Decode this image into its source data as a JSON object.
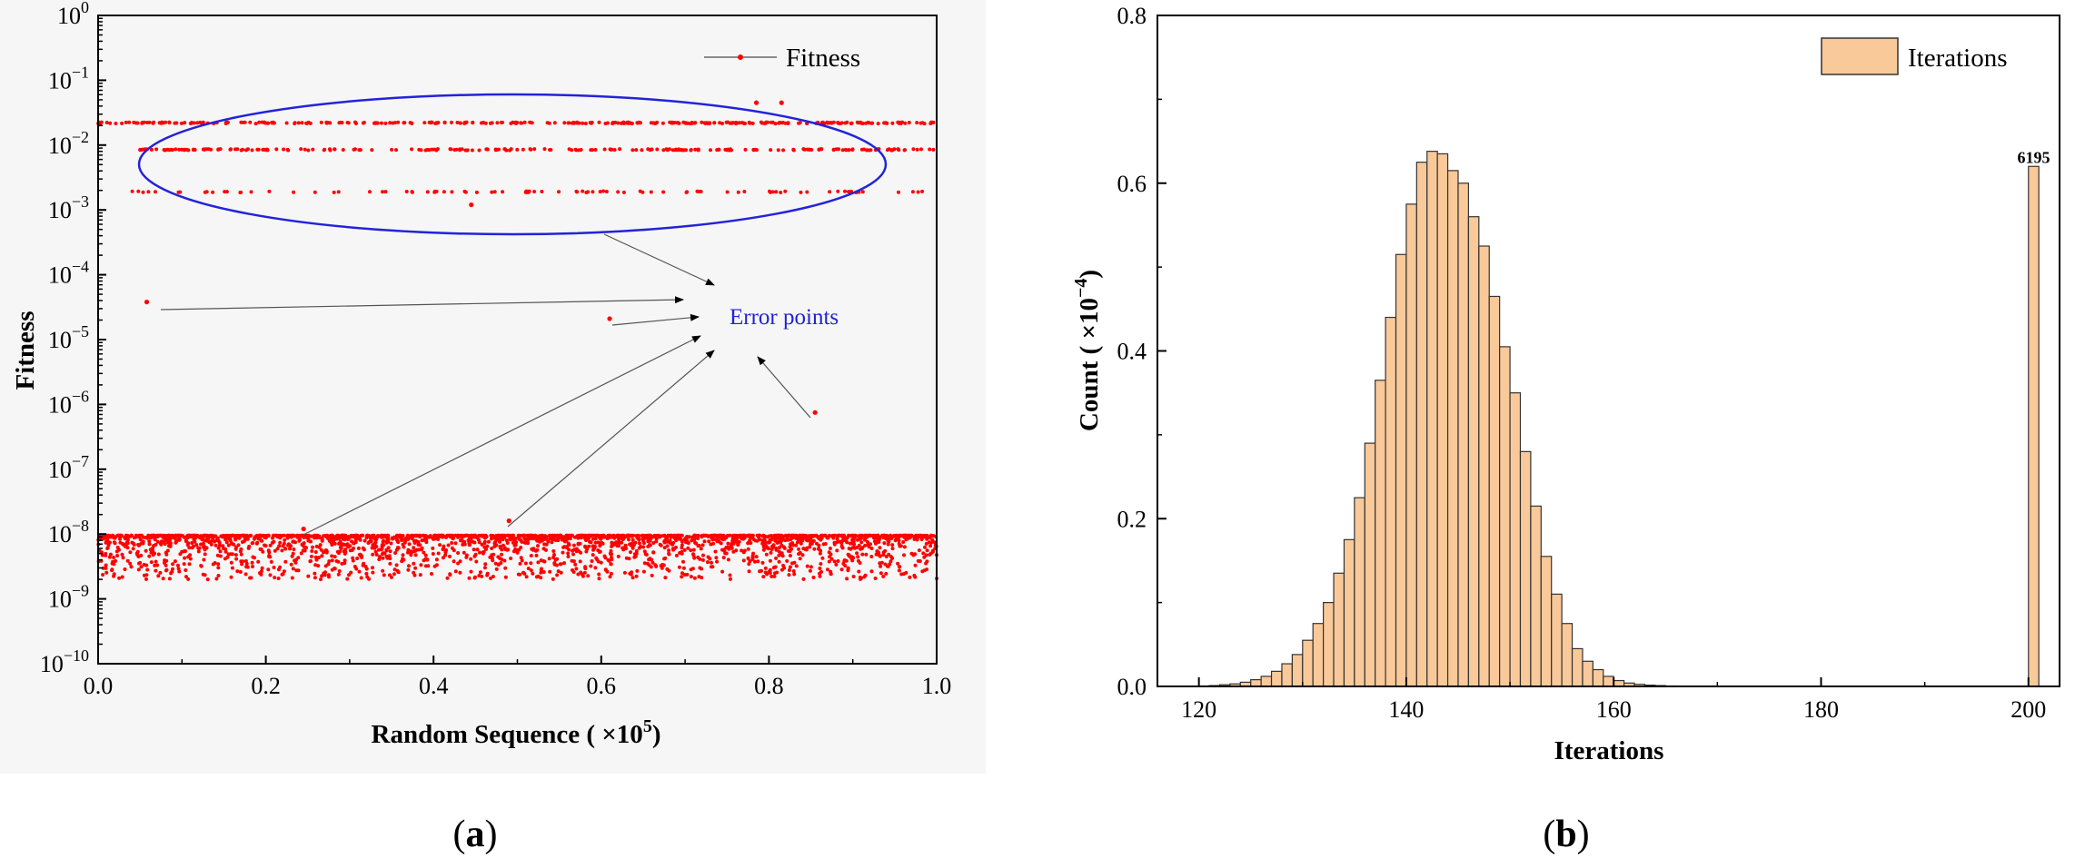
{
  "panel_a": {
    "caption_letter": "a",
    "annotation": "Error points",
    "chart_data": {
      "type": "scatter",
      "xlabel_prefix": "Random Sequence ( ×10",
      "xlabel_exp": "5",
      "xlabel_suffix": ")",
      "ylabel": "Fitness",
      "xlim": [
        0.0,
        1.0
      ],
      "ylim": [
        1e-10,
        1
      ],
      "yscale": "log",
      "xticks": [
        "0.0",
        "0.2",
        "0.4",
        "0.6",
        "0.8",
        "1.0"
      ],
      "ytick_exponents": [
        "0",
        "-1",
        "-2",
        "-3",
        "-4",
        "-5",
        "-6",
        "-7",
        "-8",
        "-9",
        "-10"
      ],
      "grid": false,
      "legend_position": "top-right",
      "series": [
        {
          "name": "Fitness",
          "color": "#ff0000",
          "bands": [
            {
              "y": 0.022,
              "x_range": [
                0.0,
                1.0
              ]
            },
            {
              "y": 0.0085,
              "x_range": [
                0.05,
                1.0
              ]
            },
            {
              "y": 0.0019,
              "x_range": [
                0.03,
                1.0
              ]
            },
            {
              "y_range": [
                2e-09,
                9.5e-09
              ],
              "x_range": [
                0.0,
                1.0
              ]
            }
          ],
          "error_points": [
            {
              "x": 0.058,
              "y": 3.8e-05
            },
            {
              "x": 0.61,
              "y": 2.1e-05
            },
            {
              "x": 0.855,
              "y": 7.5e-07
            },
            {
              "x": 0.245,
              "y": 1.2e-08
            },
            {
              "x": 0.49,
              "y": 1.6e-08
            },
            {
              "x": 0.445,
              "y": 0.0012
            },
            {
              "x": 0.785,
              "y": 0.045
            },
            {
              "x": 0.815,
              "y": 0.045
            }
          ]
        }
      ]
    }
  },
  "panel_b": {
    "caption_letter": "b",
    "chart_data": {
      "type": "bar",
      "xlabel": "Iterations",
      "ylabel_prefix": "Count ( ×10",
      "ylabel_exp": "−4",
      "ylabel_suffix": ")",
      "xlim": [
        116,
        203
      ],
      "ylim": [
        0,
        0.8
      ],
      "xticks": [
        "120",
        "140",
        "160",
        "180",
        "200"
      ],
      "yticks": [
        "0.0",
        "0.2",
        "0.4",
        "0.6",
        "0.8"
      ],
      "grid": false,
      "legend_position": "top-right",
      "bar_fill": "#f9c99a",
      "bar_edge": "#333333",
      "series": [
        {
          "name": "Iterations",
          "bin_start": 120,
          "bin_width": 1,
          "values": [
            0.0005,
            0.001,
            0.002,
            0.003,
            0.005,
            0.008,
            0.012,
            0.018,
            0.027,
            0.038,
            0.055,
            0.075,
            0.1,
            0.135,
            0.175,
            0.225,
            0.29,
            0.365,
            0.44,
            0.515,
            0.575,
            0.625,
            0.638,
            0.635,
            0.615,
            0.6,
            0.56,
            0.525,
            0.465,
            0.405,
            0.35,
            0.28,
            0.215,
            0.155,
            0.11,
            0.075,
            0.045,
            0.03,
            0.02,
            0.012,
            0.007,
            0.004,
            0.0025,
            0.0015,
            0.001,
            0.0005
          ]
        }
      ],
      "outlier": {
        "x": 200.5,
        "width": 1,
        "value": 0.62,
        "label": "6195"
      }
    }
  }
}
